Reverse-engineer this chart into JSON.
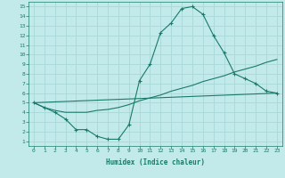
{
  "xlabel": "Humidex (Indice chaleur)",
  "background_color": "#c2eaea",
  "grid_color": "#a8d8d8",
  "line_color": "#1a7a6a",
  "xlim": [
    -0.5,
    23.5
  ],
  "ylim": [
    0.5,
    15.5
  ],
  "xticks": [
    0,
    1,
    2,
    3,
    4,
    5,
    6,
    7,
    8,
    9,
    10,
    11,
    12,
    13,
    14,
    15,
    16,
    17,
    18,
    19,
    20,
    21,
    22,
    23
  ],
  "yticks": [
    1,
    2,
    3,
    4,
    5,
    6,
    7,
    8,
    9,
    10,
    11,
    12,
    13,
    14,
    15
  ],
  "line1_x": [
    0,
    1,
    2,
    3,
    4,
    5,
    6,
    7,
    8,
    9,
    10,
    11,
    12,
    13,
    14,
    15,
    16,
    17,
    18,
    19,
    20,
    21,
    22,
    23
  ],
  "line1_y": [
    5.0,
    4.5,
    4.0,
    3.3,
    2.2,
    2.2,
    1.5,
    1.2,
    1.2,
    2.7,
    7.3,
    9.0,
    12.3,
    13.3,
    14.8,
    15.0,
    14.2,
    12.0,
    10.2,
    8.0,
    7.5,
    7.0,
    6.2,
    6.0
  ],
  "line2_x": [
    0,
    1,
    2,
    3,
    4,
    5,
    6,
    7,
    8,
    9,
    10,
    11,
    12,
    13,
    14,
    15,
    16,
    17,
    18,
    19,
    20,
    21,
    22,
    23
  ],
  "line2_y": [
    5.0,
    4.5,
    4.2,
    4.0,
    4.0,
    4.0,
    4.2,
    4.3,
    4.5,
    4.8,
    5.2,
    5.5,
    5.8,
    6.2,
    6.5,
    6.8,
    7.2,
    7.5,
    7.8,
    8.2,
    8.5,
    8.8,
    9.2,
    9.5
  ],
  "line3_x": [
    0,
    23
  ],
  "line3_y": [
    5.0,
    6.0
  ]
}
